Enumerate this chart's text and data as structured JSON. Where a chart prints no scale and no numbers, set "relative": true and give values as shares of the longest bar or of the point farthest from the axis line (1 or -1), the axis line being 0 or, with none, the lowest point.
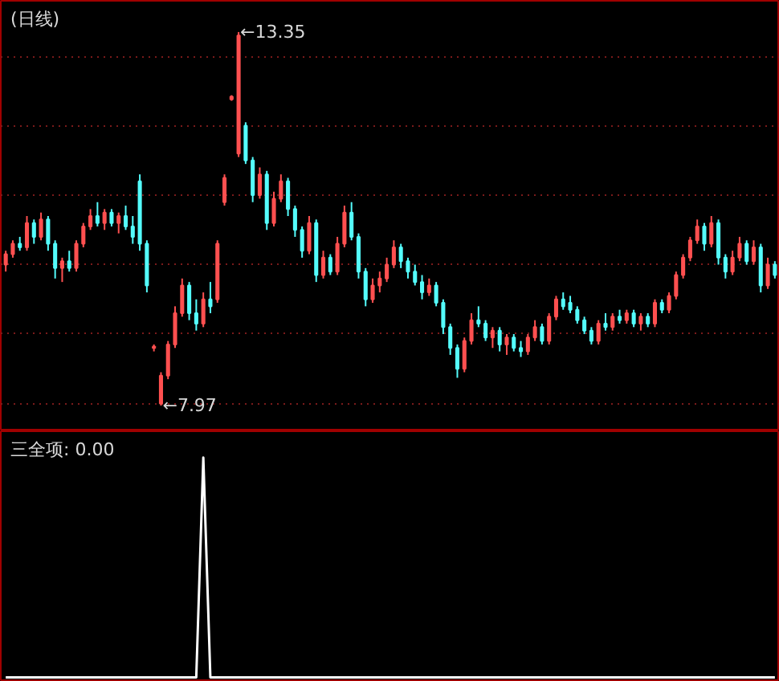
{
  "chart_data": [
    {
      "type": "candlestick",
      "title": "(日线)",
      "grid": "y",
      "tick_labels": false,
      "categories": [
        null,
        null,
        null,
        null,
        null,
        null,
        null,
        null,
        null,
        null,
        null,
        null,
        null,
        null,
        null,
        null,
        null,
        null,
        null,
        null,
        null,
        null,
        null,
        null,
        null,
        null,
        null,
        null,
        null,
        null,
        null,
        null,
        null,
        null,
        null,
        null,
        null,
        null,
        null,
        null,
        null,
        null,
        null,
        null,
        null,
        null,
        null,
        null,
        null,
        null,
        null,
        null,
        null,
        null,
        null,
        null,
        null,
        null,
        null,
        null,
        null,
        null,
        null,
        null,
        null,
        null,
        null,
        null,
        null,
        null,
        null,
        null,
        null,
        null,
        null,
        null,
        null,
        null,
        null,
        null,
        null,
        null,
        null,
        null,
        null,
        null,
        null,
        null,
        null,
        null,
        null,
        null,
        null,
        null,
        null,
        null,
        null,
        null,
        null,
        null,
        null,
        null,
        null,
        null,
        null,
        null,
        null,
        null,
        null,
        null
      ],
      "ylim": [
        7.6,
        13.8
      ],
      "yticks": [
        {
          "value": 8,
          "label": null
        },
        {
          "value": 9,
          "label": null
        },
        {
          "value": 10,
          "label": null
        },
        {
          "value": 11,
          "label": null
        },
        {
          "value": 12,
          "label": null
        },
        {
          "value": 13,
          "label": null
        }
      ],
      "ohlc": [
        [
          10.0,
          10.2,
          9.9,
          10.15
        ],
        [
          10.15,
          10.35,
          10.1,
          10.3
        ],
        [
          10.3,
          10.4,
          10.2,
          10.25
        ],
        [
          10.25,
          10.7,
          10.2,
          10.6
        ],
        [
          10.6,
          10.65,
          10.3,
          10.4
        ],
        [
          10.4,
          10.75,
          10.35,
          10.65
        ],
        [
          10.65,
          10.7,
          10.2,
          10.3
        ],
        [
          10.3,
          10.35,
          9.8,
          9.95
        ],
        [
          9.95,
          10.1,
          9.75,
          10.05
        ],
        [
          10.05,
          10.2,
          9.9,
          9.95
        ],
        [
          9.95,
          10.35,
          9.9,
          10.3
        ],
        [
          10.3,
          10.6,
          10.25,
          10.55
        ],
        [
          10.55,
          10.8,
          10.5,
          10.7
        ],
        [
          10.7,
          10.9,
          10.55,
          10.6
        ],
        [
          10.6,
          10.8,
          10.5,
          10.75
        ],
        [
          10.75,
          10.8,
          10.55,
          10.6
        ],
        [
          10.6,
          10.75,
          10.45,
          10.7
        ],
        [
          10.7,
          10.85,
          10.5,
          10.55
        ],
        [
          10.55,
          10.7,
          10.3,
          10.4
        ],
        [
          11.2,
          11.3,
          10.2,
          10.3
        ],
        [
          10.3,
          10.35,
          9.6,
          9.7
        ],
        [
          8.8,
          8.85,
          8.75,
          8.82
        ],
        [
          8.0,
          8.45,
          7.97,
          8.4
        ],
        [
          8.4,
          8.9,
          8.35,
          8.85
        ],
        [
          8.85,
          9.4,
          8.8,
          9.3
        ],
        [
          9.3,
          9.8,
          9.25,
          9.7
        ],
        [
          9.7,
          9.75,
          9.2,
          9.3
        ],
        [
          9.3,
          9.5,
          9.05,
          9.15
        ],
        [
          9.15,
          9.6,
          9.1,
          9.5
        ],
        [
          9.5,
          9.75,
          9.3,
          9.4
        ],
        [
          9.5,
          10.35,
          9.45,
          10.3
        ],
        [
          10.9,
          11.3,
          10.85,
          11.25
        ],
        [
          12.38,
          12.44,
          12.36,
          12.42
        ],
        [
          11.6,
          13.35,
          11.55,
          13.3
        ],
        [
          12.0,
          12.05,
          11.45,
          11.5
        ],
        [
          11.5,
          11.55,
          10.9,
          11.0
        ],
        [
          11.0,
          11.4,
          10.95,
          11.3
        ],
        [
          11.3,
          11.35,
          10.5,
          10.6
        ],
        [
          10.6,
          11.05,
          10.55,
          10.95
        ],
        [
          10.95,
          11.3,
          10.9,
          11.2
        ],
        [
          11.2,
          11.25,
          10.7,
          10.8
        ],
        [
          10.8,
          10.85,
          10.4,
          10.5
        ],
        [
          10.5,
          10.55,
          10.1,
          10.2
        ],
        [
          10.2,
          10.7,
          10.15,
          10.6
        ],
        [
          10.6,
          10.65,
          9.75,
          9.85
        ],
        [
          9.85,
          10.2,
          9.8,
          10.1
        ],
        [
          10.1,
          10.15,
          9.85,
          9.9
        ],
        [
          9.9,
          10.4,
          9.85,
          10.3
        ],
        [
          10.3,
          10.85,
          10.25,
          10.75
        ],
        [
          10.75,
          10.9,
          10.35,
          10.4
        ],
        [
          10.4,
          10.45,
          9.8,
          9.9
        ],
        [
          9.9,
          9.95,
          9.4,
          9.5
        ],
        [
          9.5,
          9.8,
          9.45,
          9.7
        ],
        [
          9.7,
          9.9,
          9.6,
          9.8
        ],
        [
          9.8,
          10.1,
          9.75,
          10.0
        ],
        [
          10.0,
          10.35,
          9.95,
          10.25
        ],
        [
          10.25,
          10.3,
          9.95,
          10.05
        ],
        [
          10.05,
          10.1,
          9.8,
          9.9
        ],
        [
          9.9,
          10.0,
          9.7,
          9.75
        ],
        [
          9.75,
          9.85,
          9.5,
          9.6
        ],
        [
          9.6,
          9.8,
          9.55,
          9.7
        ],
        [
          9.7,
          9.75,
          9.4,
          9.45
        ],
        [
          9.45,
          9.5,
          9.0,
          9.1
        ],
        [
          9.1,
          9.15,
          8.7,
          8.8
        ],
        [
          8.8,
          8.85,
          8.37,
          8.5
        ],
        [
          8.5,
          8.95,
          8.45,
          8.9
        ],
        [
          8.9,
          9.3,
          8.85,
          9.2
        ],
        [
          9.2,
          9.4,
          9.1,
          9.15
        ],
        [
          9.15,
          9.2,
          8.9,
          8.95
        ],
        [
          8.95,
          9.1,
          8.8,
          9.05
        ],
        [
          9.05,
          9.1,
          8.75,
          8.85
        ],
        [
          8.85,
          9.0,
          8.7,
          8.95
        ],
        [
          8.95,
          9.0,
          8.75,
          8.8
        ],
        [
          8.8,
          8.9,
          8.67,
          8.75
        ],
        [
          8.75,
          9.0,
          8.7,
          8.95
        ],
        [
          8.95,
          9.2,
          8.9,
          9.1
        ],
        [
          9.1,
          9.15,
          8.85,
          8.9
        ],
        [
          8.9,
          9.3,
          8.85,
          9.25
        ],
        [
          9.25,
          9.55,
          9.2,
          9.5
        ],
        [
          9.5,
          9.6,
          9.35,
          9.4
        ],
        [
          9.45,
          9.55,
          9.3,
          9.35
        ],
        [
          9.35,
          9.4,
          9.15,
          9.2
        ],
        [
          9.2,
          9.25,
          9.0,
          9.05
        ],
        [
          9.05,
          9.1,
          8.85,
          8.9
        ],
        [
          8.9,
          9.2,
          8.85,
          9.15
        ],
        [
          9.15,
          9.3,
          9.05,
          9.1
        ],
        [
          9.1,
          9.3,
          9.05,
          9.25
        ],
        [
          9.25,
          9.35,
          9.15,
          9.2
        ],
        [
          9.2,
          9.35,
          9.15,
          9.3
        ],
        [
          9.3,
          9.35,
          9.1,
          9.15
        ],
        [
          9.15,
          9.3,
          9.05,
          9.25
        ],
        [
          9.25,
          9.3,
          9.1,
          9.15
        ],
        [
          9.15,
          9.5,
          9.1,
          9.45
        ],
        [
          9.45,
          9.5,
          9.3,
          9.35
        ],
        [
          9.35,
          9.6,
          9.3,
          9.55
        ],
        [
          9.55,
          9.9,
          9.5,
          9.85
        ],
        [
          9.85,
          10.15,
          9.8,
          10.1
        ],
        [
          10.1,
          10.4,
          10.05,
          10.35
        ],
        [
          10.35,
          10.65,
          10.3,
          10.55
        ],
        [
          10.55,
          10.6,
          10.2,
          10.3
        ],
        [
          10.3,
          10.7,
          10.25,
          10.6
        ],
        [
          10.6,
          10.65,
          10.0,
          10.1
        ],
        [
          10.1,
          10.15,
          9.8,
          9.9
        ],
        [
          9.9,
          10.2,
          9.85,
          10.1
        ],
        [
          10.1,
          10.4,
          10.05,
          10.3
        ],
        [
          10.3,
          10.35,
          10.0,
          10.05
        ],
        [
          10.05,
          10.35,
          10.0,
          10.25
        ],
        [
          10.25,
          10.3,
          9.6,
          9.7
        ],
        [
          9.7,
          10.1,
          9.65,
          10.0
        ],
        [
          10.0,
          10.05,
          9.8,
          9.85
        ]
      ],
      "colors": [
        "#ff5050",
        "#ff5050",
        "#54fcfc",
        "#ff5050",
        "#54fcfc",
        "#ff5050",
        "#54fcfc",
        "#54fcfc",
        "#ff5050",
        "#54fcfc",
        "#ff5050",
        "#ff5050",
        "#ff5050",
        "#54fcfc",
        "#ff5050",
        "#54fcfc",
        "#ff5050",
        "#54fcfc",
        "#54fcfc",
        "#54fcfc",
        "#54fcfc",
        "#ff5050",
        "#ff5050",
        "#ff5050",
        "#ff5050",
        "#ff5050",
        "#54fcfc",
        "#54fcfc",
        "#ff5050",
        "#54fcfc",
        "#ff5050",
        "#ff5050",
        "#ff5050",
        "#ff5050",
        "#54fcfc",
        "#54fcfc",
        "#ff5050",
        "#54fcfc",
        "#ff5050",
        "#ff5050",
        "#54fcfc",
        "#54fcfc",
        "#54fcfc",
        "#ff5050",
        "#54fcfc",
        "#ff5050",
        "#54fcfc",
        "#ff5050",
        "#ff5050",
        "#54fcfc",
        "#54fcfc",
        "#54fcfc",
        "#ff5050",
        "#ff5050",
        "#ff5050",
        "#ff5050",
        "#54fcfc",
        "#54fcfc",
        "#54fcfc",
        "#54fcfc",
        "#ff5050",
        "#54fcfc",
        "#54fcfc",
        "#54fcfc",
        "#54fcfc",
        "#ff5050",
        "#ff5050",
        "#54fcfc",
        "#54fcfc",
        "#ff5050",
        "#54fcfc",
        "#ff5050",
        "#54fcfc",
        "#54fcfc",
        "#ff5050",
        "#ff5050",
        "#54fcfc",
        "#ff5050",
        "#ff5050",
        "#54fcfc",
        "#54fcfc",
        "#54fcfc",
        "#54fcfc",
        "#54fcfc",
        "#ff5050",
        "#54fcfc",
        "#ff5050",
        "#54fcfc",
        "#ff5050",
        "#54fcfc",
        "#ff5050",
        "#54fcfc",
        "#ff5050",
        "#54fcfc",
        "#ff5050",
        "#ff5050",
        "#ff5050",
        "#ff5050",
        "#ff5050",
        "#54fcfc",
        "#ff5050",
        "#54fcfc",
        "#54fcfc",
        "#ff5050",
        "#ff5050",
        "#54fcfc",
        "#ff5050",
        "#54fcfc",
        "#ff5050",
        "#54fcfc"
      ],
      "annotations": [
        "←13.35",
        "←7.97"
      ]
    },
    {
      "type": "line",
      "title": "三全项: 0.00",
      "relative": true,
      "tick_labels": false,
      "color": "#ffffff",
      "categories": [
        null,
        null,
        null,
        null,
        null,
        null,
        null,
        null,
        null,
        null,
        null,
        null,
        null,
        null,
        null,
        null,
        null,
        null,
        null,
        null,
        null,
        null,
        null,
        null,
        null,
        null,
        null,
        null,
        null,
        null,
        null,
        null,
        null,
        null,
        null,
        null,
        null,
        null,
        null,
        null,
        null,
        null,
        null,
        null,
        null,
        null,
        null,
        null,
        null,
        null,
        null,
        null,
        null,
        null,
        null,
        null,
        null,
        null,
        null,
        null,
        null,
        null,
        null,
        null,
        null,
        null,
        null,
        null,
        null,
        null,
        null,
        null,
        null,
        null,
        null,
        null,
        null,
        null,
        null,
        null,
        null,
        null,
        null,
        null,
        null,
        null,
        null,
        null,
        null,
        null,
        null,
        null,
        null,
        null,
        null,
        null,
        null,
        null,
        null,
        null,
        null,
        null,
        null,
        null,
        null,
        null,
        null,
        null,
        null,
        null
      ],
      "values": [
        0,
        0,
        0,
        0,
        0,
        0,
        0,
        0,
        0,
        0,
        0,
        0,
        0,
        0,
        0,
        0,
        0,
        0,
        0,
        0,
        0,
        0,
        0,
        0,
        0,
        0,
        0,
        0,
        1,
        0,
        0,
        0,
        0,
        0,
        0,
        0,
        0,
        0,
        0,
        0,
        0,
        0,
        0,
        0,
        0,
        0,
        0,
        0,
        0,
        0,
        0,
        0,
        0,
        0,
        0,
        0,
        0,
        0,
        0,
        0,
        0,
        0,
        0,
        0,
        0,
        0,
        0,
        0,
        0,
        0,
        0,
        0,
        0,
        0,
        0,
        0,
        0,
        0,
        0,
        0,
        0,
        0,
        0,
        0,
        0,
        0,
        0,
        0,
        0,
        0,
        0,
        0,
        0,
        0,
        0,
        0,
        0,
        0,
        0,
        0,
        0,
        0,
        0,
        0,
        0,
        0,
        0,
        0,
        0,
        0
      ]
    }
  ]
}
